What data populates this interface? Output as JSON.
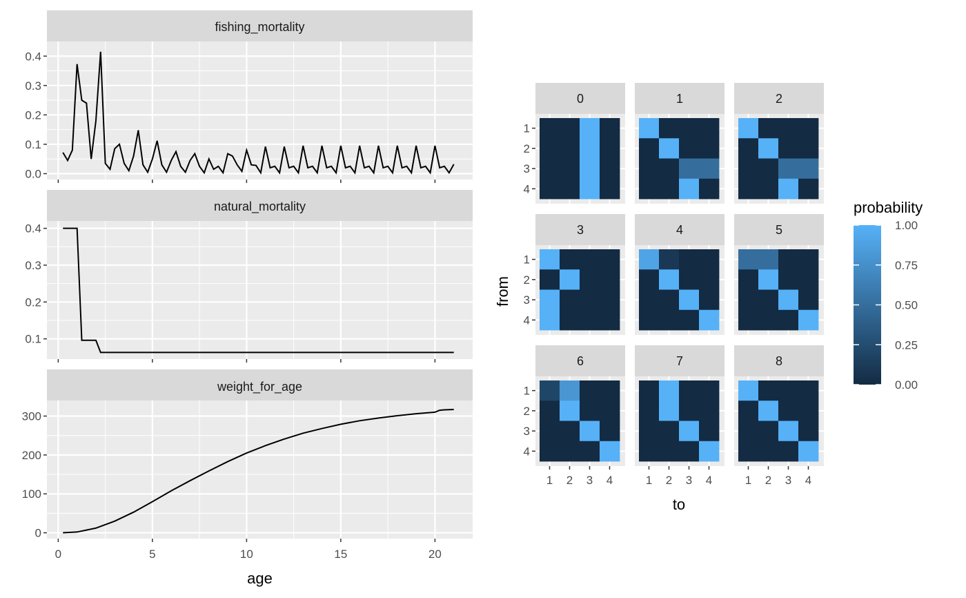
{
  "chart_data": [
    {
      "type": "line",
      "facet": "fishing_mortality",
      "xlabel": "age",
      "xlim": [
        -0.6,
        22
      ],
      "ylim": [
        -0.02,
        0.45
      ],
      "x_ticks": [
        0,
        5,
        10,
        15,
        20
      ],
      "x_tick_labels": [
        "0",
        "5",
        "10",
        "15",
        "20"
      ],
      "y_ticks": [
        0,
        0.1,
        0.2,
        0.3,
        0.4
      ],
      "y_tick_labels": [
        "0.0",
        "0.1",
        "0.2",
        "0.3",
        "0.4"
      ],
      "x": [
        0.25,
        0.5,
        0.75,
        1,
        1.25,
        1.5,
        1.75,
        2,
        2.25,
        2.5,
        2.75,
        3,
        3.25,
        3.5,
        3.75,
        4,
        4.25,
        4.5,
        4.75,
        5,
        5.25,
        5.5,
        5.75,
        6,
        6.25,
        6.5,
        6.75,
        7,
        7.25,
        7.5,
        7.75,
        8,
        8.25,
        8.5,
        8.75,
        9,
        9.25,
        9.5,
        9.75,
        10,
        10.25,
        10.5,
        10.75,
        11,
        11.25,
        11.5,
        11.75,
        12,
        12.25,
        12.5,
        12.75,
        13,
        13.25,
        13.5,
        13.75,
        14,
        14.25,
        14.5,
        14.75,
        15,
        15.25,
        15.5,
        15.75,
        16,
        16.25,
        16.5,
        16.75,
        17,
        17.25,
        17.5,
        17.75,
        18,
        18.25,
        18.5,
        18.75,
        19,
        19.25,
        19.5,
        19.75,
        20,
        20.25,
        20.5,
        20.75,
        21
      ],
      "y": [
        0.072,
        0.045,
        0.08,
        0.373,
        0.25,
        0.24,
        0.05,
        0.18,
        0.415,
        0.035,
        0.015,
        0.085,
        0.1,
        0.035,
        0.01,
        0.06,
        0.148,
        0.03,
        0.005,
        0.05,
        0.112,
        0.03,
        0.005,
        0.045,
        0.075,
        0.025,
        0.005,
        0.045,
        0.068,
        0.025,
        0.003,
        0.05,
        0.015,
        0.025,
        0.003,
        0.068,
        0.06,
        0.03,
        0.008,
        0.08,
        0.03,
        0.028,
        0.003,
        0.092,
        0.02,
        0.025,
        0.003,
        0.092,
        0.02,
        0.025,
        0.003,
        0.095,
        0.02,
        0.025,
        0.003,
        0.095,
        0.02,
        0.025,
        0.003,
        0.095,
        0.02,
        0.025,
        0.003,
        0.095,
        0.02,
        0.025,
        0.003,
        0.095,
        0.02,
        0.025,
        0.003,
        0.095,
        0.02,
        0.025,
        0.003,
        0.095,
        0.02,
        0.025,
        0.003,
        0.095,
        0.02,
        0.025,
        0.003,
        0.032
      ]
    },
    {
      "type": "line",
      "facet": "natural_mortality",
      "xlim": [
        -0.6,
        22
      ],
      "ylim": [
        0.045,
        0.42
      ],
      "y_ticks": [
        0.1,
        0.2,
        0.3,
        0.4
      ],
      "y_tick_labels": [
        "0.1",
        "0.2",
        "0.3",
        "0.4"
      ],
      "x": [
        0.25,
        0.5,
        0.75,
        1,
        1.25,
        1.5,
        1.75,
        2,
        2.25,
        2.5,
        3,
        4,
        5,
        10,
        15,
        20,
        21
      ],
      "y": [
        0.4,
        0.4,
        0.4,
        0.4,
        0.096,
        0.096,
        0.096,
        0.096,
        0.063,
        0.063,
        0.063,
        0.063,
        0.063,
        0.063,
        0.063,
        0.063,
        0.063
      ]
    },
    {
      "type": "line",
      "facet": "weight_for_age",
      "xlim": [
        -0.6,
        22
      ],
      "ylim": [
        -15,
        340
      ],
      "y_ticks": [
        0,
        100,
        200,
        300
      ],
      "y_tick_labels": [
        "0",
        "100",
        "200",
        "300"
      ],
      "x": [
        0.25,
        1,
        2,
        3,
        4,
        5,
        6,
        7,
        8,
        9,
        10,
        11,
        12,
        13,
        14,
        15,
        16,
        17,
        18,
        19,
        20,
        20.25,
        20.5,
        21
      ],
      "y": [
        0,
        2,
        12,
        30,
        53,
        80,
        108,
        134,
        159,
        183,
        205,
        224,
        241,
        256,
        268,
        279,
        288,
        295,
        301,
        306,
        310,
        315,
        316,
        317
      ]
    },
    {
      "type": "heatmap",
      "xlabel": "to",
      "ylabel": "from",
      "x_tick_labels": [
        "1",
        "2",
        "3",
        "4"
      ],
      "y_tick_labels": [
        "1",
        "2",
        "3",
        "4"
      ],
      "panels": [
        {
          "label": "0",
          "matrix": [
            [
              0,
              0,
              1,
              0
            ],
            [
              0,
              0,
              1,
              0
            ],
            [
              0,
              0,
              1,
              0
            ],
            [
              0,
              0,
              1,
              0
            ]
          ]
        },
        {
          "label": "1",
          "matrix": [
            [
              1,
              0,
              0,
              0
            ],
            [
              0,
              1,
              0,
              0
            ],
            [
              0,
              0,
              0.5,
              0.5
            ],
            [
              0,
              0,
              1,
              0
            ]
          ]
        },
        {
          "label": "2",
          "matrix": [
            [
              1,
              0,
              0,
              0
            ],
            [
              0,
              1,
              0,
              0
            ],
            [
              0,
              0,
              0.5,
              0.5
            ],
            [
              0,
              0,
              1,
              0
            ]
          ]
        },
        {
          "label": "3",
          "matrix": [
            [
              1,
              0,
              0,
              0
            ],
            [
              0,
              1,
              0,
              0
            ],
            [
              1,
              0,
              0,
              0
            ],
            [
              1,
              0,
              0,
              0
            ]
          ]
        },
        {
          "label": "4",
          "matrix": [
            [
              0.9,
              0.1,
              0,
              0
            ],
            [
              0,
              1,
              0,
              0
            ],
            [
              0,
              0,
              1,
              0
            ],
            [
              0,
              0,
              0,
              1
            ]
          ]
        },
        {
          "label": "5",
          "matrix": [
            [
              0.5,
              0.5,
              0,
              0
            ],
            [
              0,
              1,
              0,
              0
            ],
            [
              0,
              0,
              1,
              0
            ],
            [
              0,
              0,
              0,
              1
            ]
          ]
        },
        {
          "label": "6",
          "matrix": [
            [
              0.2,
              0.8,
              0,
              0
            ],
            [
              0,
              1,
              0,
              0
            ],
            [
              0,
              0,
              1,
              0
            ],
            [
              0,
              0,
              0,
              1
            ]
          ]
        },
        {
          "label": "7",
          "matrix": [
            [
              0,
              1,
              0,
              0
            ],
            [
              0,
              1,
              0,
              0
            ],
            [
              0,
              0,
              1,
              0
            ],
            [
              0,
              0,
              0,
              1
            ]
          ]
        },
        {
          "label": "8",
          "matrix": [
            [
              1,
              0,
              0,
              0
            ],
            [
              0,
              1,
              0,
              0
            ],
            [
              0,
              0,
              1,
              0
            ],
            [
              0,
              0,
              0,
              1
            ]
          ]
        }
      ],
      "legend": {
        "title": "probability",
        "placement": "right",
        "ticks": [
          1,
          0.75,
          0.5,
          0.25,
          0
        ],
        "tick_labels": [
          "1.00",
          "0.75",
          "0.50",
          "0.25",
          "0.00"
        ],
        "color_low": "#132B43",
        "color_high": "#56B1F7"
      }
    }
  ]
}
